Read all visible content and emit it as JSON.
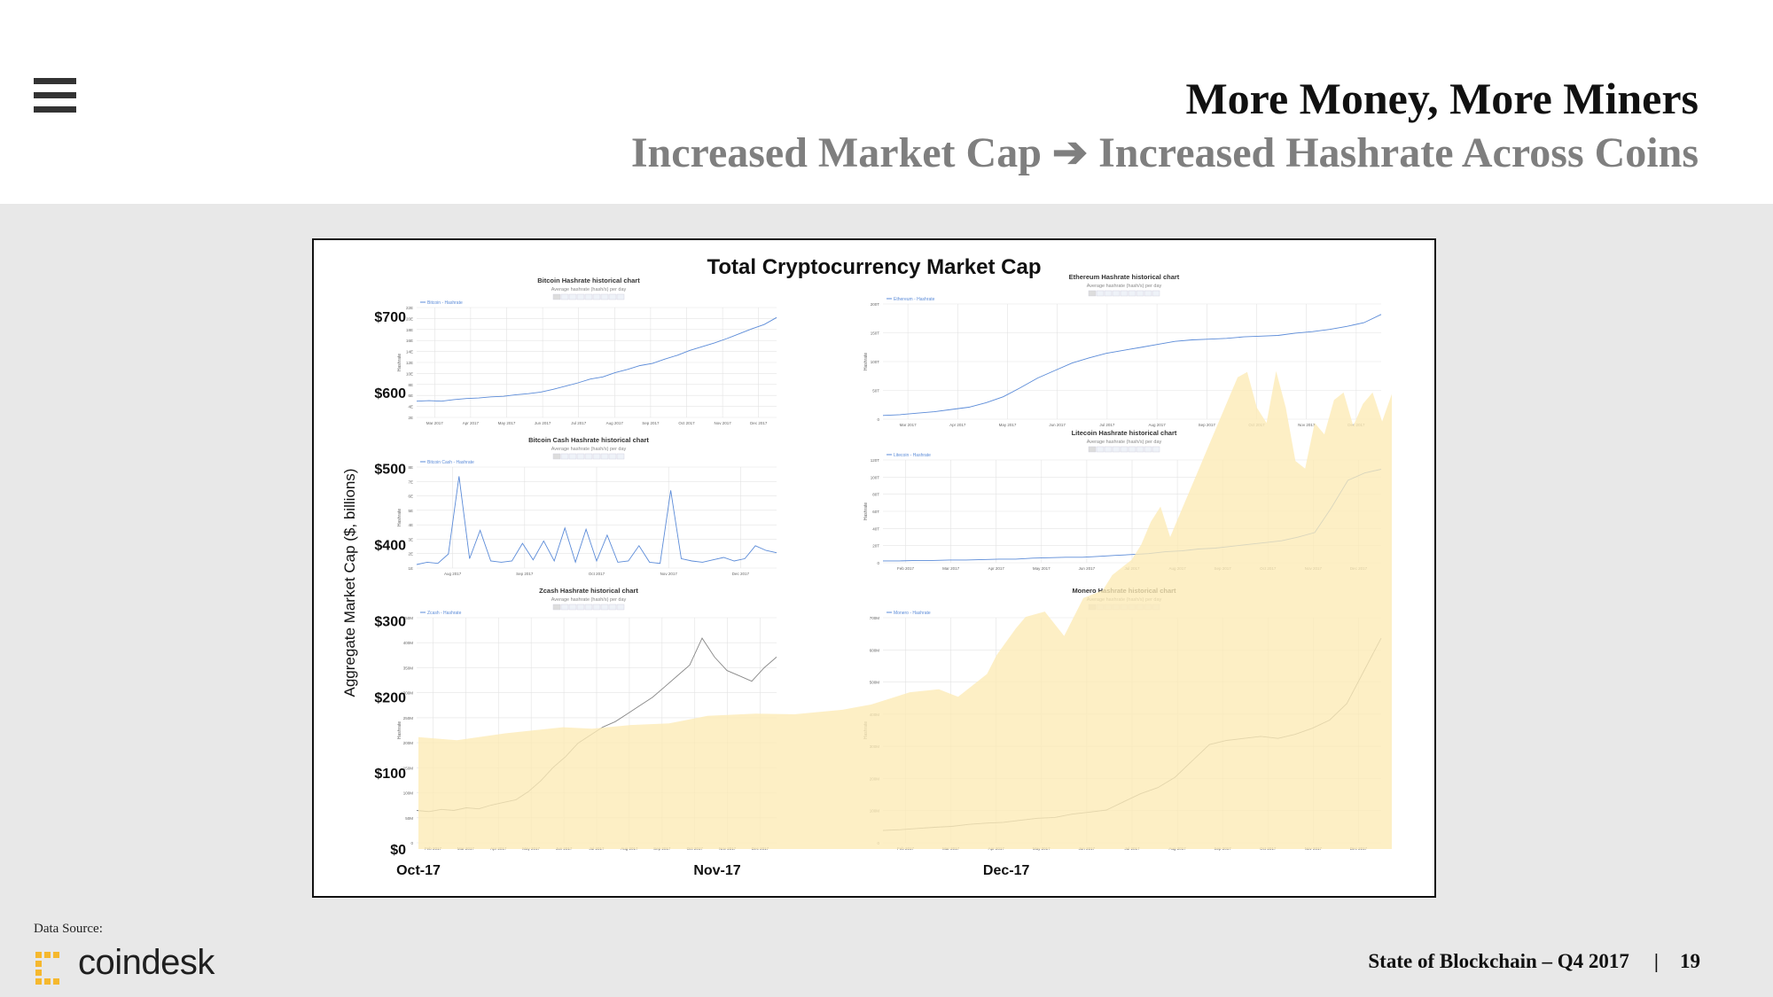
{
  "header": {
    "title": "More Money, More Miners",
    "subtitle": "Increased Market Cap ➔ Increased Hashrate Across Coins"
  },
  "footer": {
    "data_source_label": "Data Source:",
    "logo_text": "coindesk",
    "report": "State of Blockchain – Q4 2017",
    "separator": "|",
    "page_number": "19"
  },
  "colors": {
    "area_fill": "#fdeab5",
    "hashrate_line_blue": "#5b8bd8",
    "hashrate_line_gray": "#888888",
    "grid": "#e3e3e3"
  },
  "chart_data": [
    {
      "type": "area",
      "title": "Total Cryptocurrency Market Cap",
      "ylabel": "Aggregate Market Cap ($, billions)",
      "xlabel": "",
      "ylim": [
        0,
        700
      ],
      "yticks": [
        "$0",
        "$100",
        "$200",
        "$300",
        "$400",
        "$500",
        "$600",
        "$700"
      ],
      "xticks": [
        "Oct-17",
        "Nov-17",
        "Dec-17"
      ],
      "x_day_range": [
        "Oct-17",
        "Jan-18"
      ],
      "grid": false,
      "series": [
        {
          "values": [
            [
              0,
              147
            ],
            [
              4,
              143
            ],
            [
              9,
              152
            ],
            [
              15,
              160
            ],
            [
              18,
              158
            ],
            [
              22,
              163
            ],
            [
              26,
              165
            ],
            [
              30,
              175
            ],
            [
              35,
              178
            ],
            [
              39,
              177
            ],
            [
              44,
              183
            ],
            [
              47,
              190
            ],
            [
              51,
              206
            ],
            [
              54,
              210
            ],
            [
              56,
              200
            ],
            [
              59,
              230
            ],
            [
              60,
              255
            ],
            [
              62,
              290
            ],
            [
              63,
              305
            ],
            [
              65,
              312
            ],
            [
              67,
              280
            ],
            [
              69,
              330
            ],
            [
              71,
              340
            ],
            [
              72,
              360
            ],
            [
              74,
              380
            ],
            [
              75,
              400
            ],
            [
              76,
              430
            ],
            [
              77,
              450
            ],
            [
              78,
              410
            ],
            [
              79,
              440
            ],
            [
              80,
              470
            ],
            [
              81,
              500
            ],
            [
              82,
              530
            ],
            [
              83,
              560
            ],
            [
              84,
              590
            ],
            [
              85,
              620
            ],
            [
              86,
              627
            ],
            [
              87,
              580
            ],
            [
              88,
              560
            ],
            [
              89,
              628
            ],
            [
              90,
              580
            ],
            [
              91,
              510
            ],
            [
              92,
              500
            ],
            [
              93,
              560
            ],
            [
              94,
              545
            ],
            [
              95,
              590
            ],
            [
              96,
              600
            ],
            [
              97,
              556
            ],
            [
              98,
              585
            ],
            [
              99,
              600
            ],
            [
              100,
              562
            ],
            [
              101,
              598
            ]
          ]
        }
      ],
      "panels": [
        {
          "title": "Bitcoin Hashrate historical chart",
          "subtitle": "Average hashrate (hash/s) per day",
          "legend": "Bitcoin - Hashrate",
          "ylabel": "Hashrate",
          "yticks": [
            "2E",
            "4E",
            "6E",
            "8E",
            "10E",
            "12E",
            "14E",
            "16E",
            "18E",
            "20E",
            "22E"
          ],
          "xticks": [
            "Mar 2017",
            "Apr 2017",
            "May 2017",
            "Jun 2017",
            "Jul 2017",
            "Aug 2017",
            "Sep 2017",
            "Oct 2017",
            "Nov 2017",
            "Dec 2017"
          ],
          "values": [
            3.0,
            3.1,
            3.0,
            3.3,
            3.5,
            3.6,
            3.8,
            3.9,
            4.2,
            4.4,
            4.7,
            5.2,
            5.8,
            6.4,
            7.1,
            7.5,
            8.3,
            8.9,
            9.6,
            10.0,
            10.8,
            11.5,
            12.4,
            13.1,
            13.8,
            14.6,
            15.5,
            16.4,
            17.2,
            18.5
          ]
        },
        {
          "title": "Ethereum Hashrate historical chart",
          "subtitle": "Average hashrate (hash/s) per day",
          "legend": "Ethereum - Hashrate",
          "ylabel": "Hashrate",
          "yticks": [
            "0",
            "50T",
            "100T",
            "150T",
            "200T"
          ],
          "xticks": [
            "Mar 2017",
            "Apr 2017",
            "May 2017",
            "Jun 2017",
            "Jul 2017",
            "Aug 2017",
            "Sep 2017",
            "Oct 2017",
            "Nov 2017",
            "Dec 2017"
          ],
          "values": [
            5,
            6,
            8,
            10,
            13,
            16,
            22,
            30,
            42,
            55,
            65,
            75,
            82,
            88,
            92,
            96,
            100,
            104,
            106,
            107,
            108,
            110,
            111,
            112,
            115,
            117,
            120,
            124,
            129,
            140
          ]
        },
        {
          "title": "Bitcoin Cash Hashrate historical chart",
          "subtitle": "Average hashrate (hash/s) per day",
          "legend": "Bitcoin Cash - Hashrate",
          "ylabel": "Hashrate",
          "yticks": [
            "1E",
            "2E",
            "3E",
            "4E",
            "5E",
            "6E",
            "7E",
            "8E"
          ],
          "xticks": [
            "Aug 2017",
            "Sep 2017",
            "Oct 2017",
            "Nov 2017",
            "Dec 2017"
          ],
          "values": [
            0.3,
            0.5,
            0.4,
            1.2,
            7.8,
            0.8,
            3.2,
            0.6,
            0.5,
            0.6,
            2.1,
            0.7,
            2.3,
            0.6,
            3.4,
            0.5,
            3.3,
            0.6,
            2.8,
            0.5,
            0.6,
            1.9,
            0.5,
            0.4,
            6.6,
            0.8,
            0.6,
            0.5,
            0.7,
            0.9,
            0.6,
            0.8,
            1.9,
            1.5,
            1.3
          ]
        },
        {
          "title": "Litecoin Hashrate historical chart",
          "subtitle": "Average hashrate (hash/s) per day",
          "legend": "Litecoin - Hashrate",
          "ylabel": "Hashrate",
          "yticks": [
            "0",
            "20T",
            "40T",
            "60T",
            "80T",
            "100T",
            "120T"
          ],
          "xticks": [
            "Feb 2017",
            "Mar 2017",
            "Apr 2017",
            "May 2017",
            "Jun 2017",
            "Jul 2017",
            "Aug 2017",
            "Sep 2017",
            "Oct 2017",
            "Nov 2017",
            "Dec 2017"
          ],
          "values": [
            2,
            2,
            2.5,
            2.5,
            3,
            3,
            3.5,
            4,
            4,
            5,
            5.5,
            6,
            6,
            7,
            8,
            9,
            10,
            12,
            13,
            15,
            16,
            18,
            20,
            22,
            24,
            28,
            33,
            60,
            90,
            98,
            102
          ]
        },
        {
          "title": "Zcash Hashrate historical chart",
          "subtitle": "Average hashrate (hash/s) per day",
          "legend": "Zcash - Hashrate",
          "ylabel": "Hashrate",
          "yticks": [
            "0",
            "50M",
            "100M",
            "150M",
            "200M",
            "250M",
            "300M",
            "350M",
            "400M",
            "450M"
          ],
          "xticks": [
            "Feb 2017",
            "Mar 2017",
            "Apr 2017",
            "May 2017",
            "Jun 2017",
            "Jul 2017",
            "Aug 2017",
            "Sep 2017",
            "Oct 2017",
            "Nov 2017",
            "Dec 2017"
          ],
          "values": [
            60,
            58,
            62,
            60,
            65,
            63,
            70,
            75,
            80,
            95,
            115,
            140,
            160,
            185,
            200,
            215,
            225,
            240,
            255,
            270,
            290,
            310,
            330,
            380,
            345,
            320,
            310,
            300,
            325,
            345
          ]
        },
        {
          "title": "Monero Hashrate historical chart",
          "subtitle": "Average hashrate (hash/s) per day",
          "legend": "Monero - Hashrate",
          "ylabel": "Hashrate",
          "yticks": [
            "0",
            "100M",
            "200M",
            "300M",
            "400M",
            "500M",
            "600M",
            "700M"
          ],
          "xticks": [
            "Feb 2017",
            "Mar 2017",
            "Apr 2017",
            "May 2017",
            "Jun 2017",
            "Jul 2017",
            "Aug 2017",
            "Sep 2017",
            "Oct 2017",
            "Nov 2017",
            "Dec 2017"
          ],
          "values": [
            30,
            32,
            35,
            38,
            40,
            45,
            48,
            50,
            55,
            60,
            62,
            70,
            75,
            80,
            100,
            120,
            135,
            160,
            200,
            240,
            250,
            255,
            260,
            255,
            265,
            280,
            300,
            340,
            420,
            500
          ]
        }
      ]
    }
  ]
}
